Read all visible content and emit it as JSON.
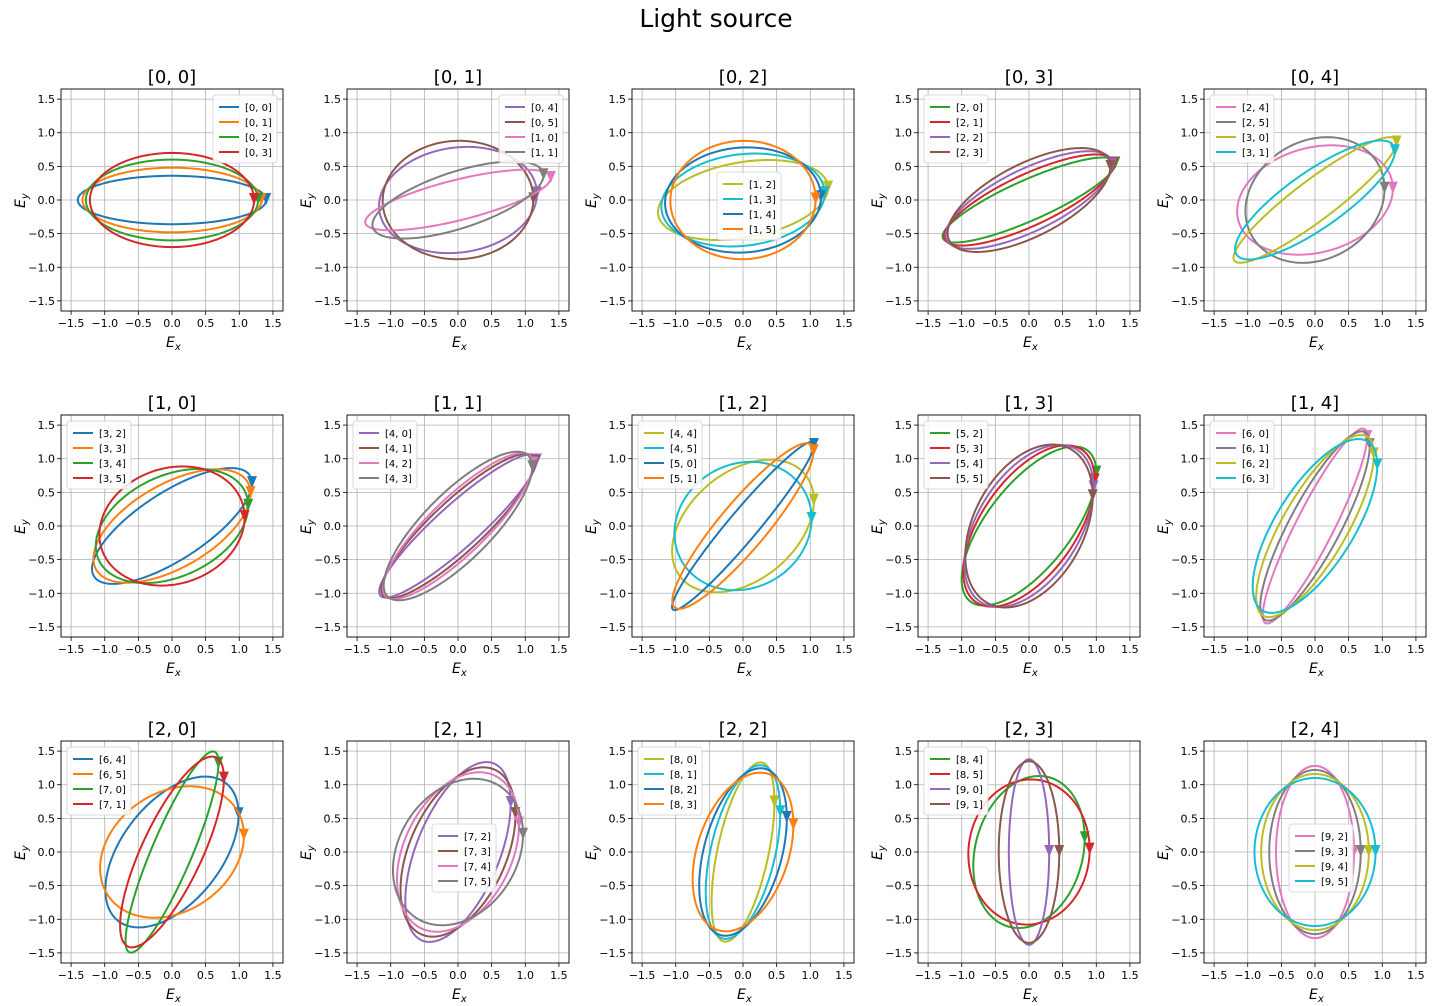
{
  "figure": {
    "title": "Light source"
  },
  "chart_data": {
    "type": "line",
    "title": "Light source",
    "xlabel": "E_x",
    "ylabel": "E_y",
    "xlim": [
      -1.65,
      1.65
    ],
    "ylim": [
      -1.65,
      1.65
    ],
    "xticks": [
      -1.5,
      -1.0,
      -0.5,
      0.0,
      0.5,
      1.0,
      1.5
    ],
    "yticks": [
      -1.5,
      -1.0,
      -0.5,
      0.0,
      0.5,
      1.0,
      1.5
    ],
    "tick_labels": [
      "−1.5",
      "−1.0",
      "−0.5",
      "0.0",
      "0.5",
      "1.0",
      "1.5"
    ],
    "grid": true,
    "colors": {
      "C0": "#1f77b4",
      "C1": "#ff7f0e",
      "C2": "#2ca02c",
      "C3": "#d62728",
      "C4": "#9467bd",
      "C5": "#8c564b",
      "C6": "#e377c2",
      "C7": "#7f7f7f",
      "C8": "#bcbd22",
      "C9": "#17becf"
    },
    "panels": [
      {
        "title": "[0, 0]",
        "legend_loc": "upper-right",
        "series": [
          {
            "name": "[0, 0]",
            "color": "C0",
            "a": 1.4,
            "b": 0.36,
            "theta": 0
          },
          {
            "name": "[0, 1]",
            "color": "C1",
            "a": 1.33,
            "b": 0.48,
            "theta": 0
          },
          {
            "name": "[0, 2]",
            "color": "C2",
            "a": 1.28,
            "b": 0.6,
            "theta": 0
          },
          {
            "name": "[0, 3]",
            "color": "C3",
            "a": 1.22,
            "b": 0.7,
            "theta": 0
          }
        ]
      },
      {
        "title": "[0, 1]",
        "legend_loc": "upper-right",
        "series": [
          {
            "name": "[0, 4]",
            "color": "C4",
            "a": 1.18,
            "b": 0.78,
            "theta": 8
          },
          {
            "name": "[0, 5]",
            "color": "C5",
            "a": 1.12,
            "b": 0.88,
            "theta": 2
          },
          {
            "name": "[1, 0]",
            "color": "C6",
            "a": 1.42,
            "b": 0.3,
            "theta": 14
          },
          {
            "name": "[1, 1]",
            "color": "C7",
            "a": 1.33,
            "b": 0.42,
            "theta": 18
          }
        ]
      },
      {
        "title": "[0, 2]",
        "legend_loc": "center",
        "series": [
          {
            "name": "[1, 2]",
            "color": "C8",
            "a": 1.28,
            "b": 0.56,
            "theta": 10
          },
          {
            "name": "[1, 3]",
            "color": "C9",
            "a": 1.22,
            "b": 0.68,
            "theta": 7
          },
          {
            "name": "[1, 4]",
            "color": "C0",
            "a": 1.16,
            "b": 0.78,
            "theta": 4
          },
          {
            "name": "[1, 5]",
            "color": "C1",
            "a": 1.08,
            "b": 0.88,
            "theta": 2
          }
        ]
      },
      {
        "title": "[0, 3]",
        "legend_loc": "upper-left",
        "series": [
          {
            "name": "[2, 0]",
            "color": "C2",
            "a": 1.4,
            "b": 0.3,
            "theta": 24
          },
          {
            "name": "[2, 1]",
            "color": "C3",
            "a": 1.38,
            "b": 0.38,
            "theta": 25
          },
          {
            "name": "[2, 2]",
            "color": "C4",
            "a": 1.36,
            "b": 0.46,
            "theta": 26
          },
          {
            "name": "[2, 3]",
            "color": "C5",
            "a": 1.33,
            "b": 0.54,
            "theta": 27
          }
        ]
      },
      {
        "title": "[0, 4]",
        "legend_loc": "upper-left",
        "series": [
          {
            "name": "[2, 4]",
            "color": "C6",
            "a": 1.18,
            "b": 0.78,
            "theta": 15
          },
          {
            "name": "[2, 5]",
            "color": "C7",
            "a": 1.08,
            "b": 0.88,
            "theta": 30
          },
          {
            "name": "[3, 0]",
            "color": "C8",
            "a": 1.5,
            "b": 0.3,
            "theta": 37
          },
          {
            "name": "[3, 1]",
            "color": "C9",
            "a": 1.42,
            "b": 0.42,
            "theta": 35
          }
        ]
      },
      {
        "title": "[1, 0]",
        "legend_loc": "upper-left",
        "series": [
          {
            "name": "[3, 2]",
            "color": "C0",
            "a": 1.38,
            "b": 0.5,
            "theta": 33
          },
          {
            "name": "[3, 3]",
            "color": "C1",
            "a": 1.3,
            "b": 0.62,
            "theta": 30
          },
          {
            "name": "[3, 4]",
            "color": "C2",
            "a": 1.2,
            "b": 0.75,
            "theta": 25
          },
          {
            "name": "[3, 5]",
            "color": "C3",
            "a": 1.1,
            "b": 0.86,
            "theta": 18
          }
        ]
      },
      {
        "title": "[1, 1]",
        "legend_loc": "upper-left",
        "series": [
          {
            "name": "[4, 0]",
            "color": "C4",
            "a": 1.55,
            "b": 0.32,
            "theta": 42
          },
          {
            "name": "[4, 1]",
            "color": "C5",
            "a": 1.52,
            "b": 0.38,
            "theta": 43
          },
          {
            "name": "[4, 2]",
            "color": "C6",
            "a": 1.5,
            "b": 0.42,
            "theta": 44
          },
          {
            "name": "[4, 3]",
            "color": "C7",
            "a": 1.48,
            "b": 0.5,
            "theta": 45
          }
        ]
      },
      {
        "title": "[1, 2]",
        "legend_loc": "upper-left",
        "series": [
          {
            "name": "[4, 4]",
            "color": "C8",
            "a": 1.2,
            "b": 0.8,
            "theta": 40
          },
          {
            "name": "[4, 5]",
            "color": "C9",
            "a": 1.05,
            "b": 0.92,
            "theta": 30
          },
          {
            "name": "[5, 0]",
            "color": "C0",
            "a": 1.62,
            "b": 0.22,
            "theta": 50
          },
          {
            "name": "[5, 1]",
            "color": "C1",
            "a": 1.58,
            "b": 0.35,
            "theta": 50
          }
        ]
      },
      {
        "title": "[1, 3]",
        "legend_loc": "upper-left",
        "series": [
          {
            "name": "[5, 2]",
            "color": "C2",
            "a": 1.42,
            "b": 0.62,
            "theta": 52
          },
          {
            "name": "[5, 3]",
            "color": "C3",
            "a": 1.38,
            "b": 0.7,
            "theta": 55
          },
          {
            "name": "[5, 4]",
            "color": "C4",
            "a": 1.34,
            "b": 0.76,
            "theta": 58
          },
          {
            "name": "[5, 5]",
            "color": "C5",
            "a": 1.3,
            "b": 0.82,
            "theta": 62
          }
        ]
      },
      {
        "title": "[1, 4]",
        "legend_loc": "upper-left",
        "series": [
          {
            "name": "[6, 0]",
            "color": "C6",
            "a": 1.62,
            "b": 0.28,
            "theta": 63
          },
          {
            "name": "[6, 1]",
            "color": "C7",
            "a": 1.58,
            "b": 0.38,
            "theta": 62
          },
          {
            "name": "[6, 2]",
            "color": "C8",
            "a": 1.54,
            "b": 0.48,
            "theta": 60
          },
          {
            "name": "[6, 3]",
            "color": "C9",
            "a": 1.48,
            "b": 0.58,
            "theta": 58
          }
        ]
      },
      {
        "title": "[2, 0]",
        "legend_loc": "upper-left",
        "series": [
          {
            "name": "[6, 4]",
            "color": "C0",
            "a": 1.3,
            "b": 0.74,
            "theta": 52
          },
          {
            "name": "[6, 5]",
            "color": "C1",
            "a": 1.15,
            "b": 0.88,
            "theta": 35
          },
          {
            "name": "[7, 0]",
            "color": "C2",
            "a": 1.62,
            "b": 0.3,
            "theta": 67
          },
          {
            "name": "[7, 1]",
            "color": "C3",
            "a": 1.55,
            "b": 0.45,
            "theta": 65
          }
        ]
      },
      {
        "title": "[2, 1]",
        "legend_loc": "center",
        "series": [
          {
            "name": "[7, 2]",
            "color": "C4",
            "a": 1.42,
            "b": 0.62,
            "theta": 68
          },
          {
            "name": "[7, 3]",
            "color": "C5",
            "a": 1.34,
            "b": 0.72,
            "theta": 66
          },
          {
            "name": "[7, 4]",
            "color": "C6",
            "a": 1.26,
            "b": 0.8,
            "theta": 64
          },
          {
            "name": "[7, 5]",
            "color": "C7",
            "a": 1.16,
            "b": 0.88,
            "theta": 58
          }
        ]
      },
      {
        "title": "[2, 2]",
        "legend_loc": "upper-left",
        "series": [
          {
            "name": "[8, 0]",
            "color": "C8",
            "a": 1.36,
            "b": 0.38,
            "theta": 78
          },
          {
            "name": "[8, 1]",
            "color": "C9",
            "a": 1.32,
            "b": 0.48,
            "theta": 77
          },
          {
            "name": "[8, 2]",
            "color": "C0",
            "a": 1.28,
            "b": 0.58,
            "theta": 75
          },
          {
            "name": "[8, 3]",
            "color": "C1",
            "a": 1.22,
            "b": 0.68,
            "theta": 72
          }
        ]
      },
      {
        "title": "[2, 3]",
        "legend_loc": "upper-left",
        "series": [
          {
            "name": "[8, 4]",
            "color": "C2",
            "a": 1.15,
            "b": 0.8,
            "theta": 75
          },
          {
            "name": "[8, 5]",
            "color": "C3",
            "a": 1.08,
            "b": 0.9,
            "theta": 85
          },
          {
            "name": "[9, 0]",
            "color": "C4",
            "a": 1.38,
            "b": 0.3,
            "theta": 90
          },
          {
            "name": "[9, 1]",
            "color": "C5",
            "a": 1.35,
            "b": 0.45,
            "theta": 90
          }
        ]
      },
      {
        "title": "[2, 4]",
        "legend_loc": "center",
        "series": [
          {
            "name": "[9, 2]",
            "color": "C6",
            "a": 1.28,
            "b": 0.58,
            "theta": 90
          },
          {
            "name": "[9, 3]",
            "color": "C7",
            "a": 1.22,
            "b": 0.68,
            "theta": 90
          },
          {
            "name": "[9, 4]",
            "color": "C8",
            "a": 1.16,
            "b": 0.8,
            "theta": 90
          },
          {
            "name": "[9, 5]",
            "color": "C9",
            "a": 1.1,
            "b": 0.9,
            "theta": 90
          }
        ]
      }
    ]
  }
}
